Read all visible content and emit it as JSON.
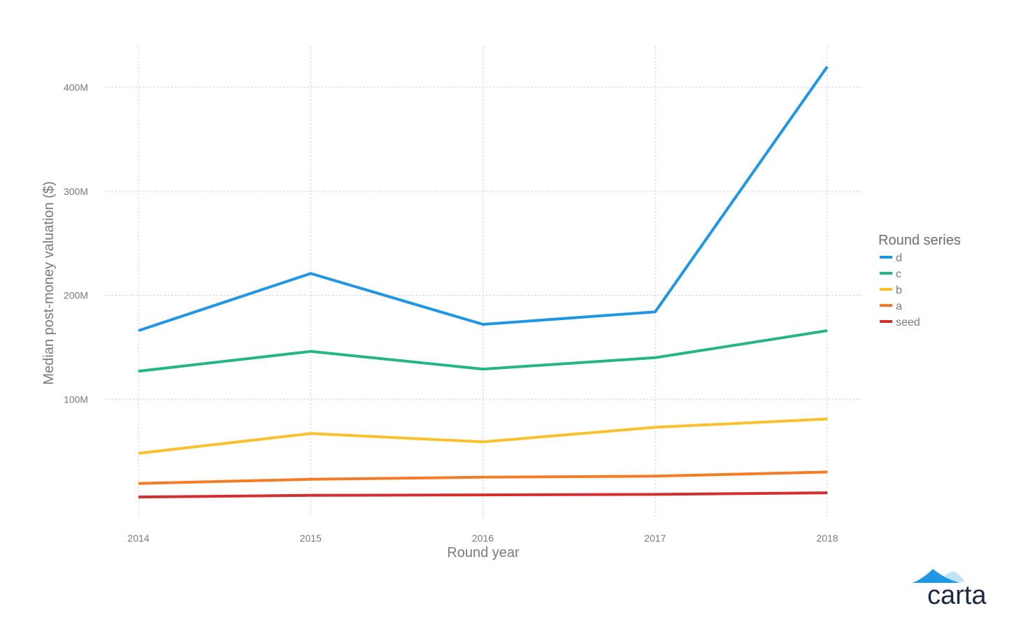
{
  "chart_data": {
    "type": "line",
    "x": [
      2014,
      2015,
      2016,
      2017,
      2018
    ],
    "xticks": [
      "2014",
      "2015",
      "2016",
      "2017",
      "2018"
    ],
    "xlabel": "Round year",
    "ylabel": "Median post-money valuation ($)",
    "yticks": [
      {
        "value": 100,
        "label": "100M"
      },
      {
        "value": 200,
        "label": "200M"
      },
      {
        "value": 300,
        "label": "300M"
      },
      {
        "value": 400,
        "label": "400M"
      }
    ],
    "y_unit": "M",
    "ylim": [
      -7,
      440
    ],
    "grid": true,
    "legend_position": "right",
    "legend_title": "Round series",
    "series": [
      {
        "name": "d",
        "color": "#2196e3",
        "values": [
          166,
          221,
          172,
          184,
          420
        ]
      },
      {
        "name": "c",
        "color": "#26b585",
        "values": [
          127,
          146,
          129,
          140,
          166
        ]
      },
      {
        "name": "b",
        "color": "#fbc02d",
        "values": [
          48,
          67,
          59,
          73,
          81
        ]
      },
      {
        "name": "a",
        "color": "#f57c26",
        "values": [
          19,
          23,
          25,
          26,
          30
        ]
      },
      {
        "name": "seed",
        "color": "#d32f2f",
        "values": [
          6,
          7.5,
          8,
          8.5,
          10
        ]
      }
    ]
  },
  "brand": {
    "logo_text": "carta",
    "logo_colors": [
      "#2196e3",
      "#bfe3f5"
    ]
  }
}
